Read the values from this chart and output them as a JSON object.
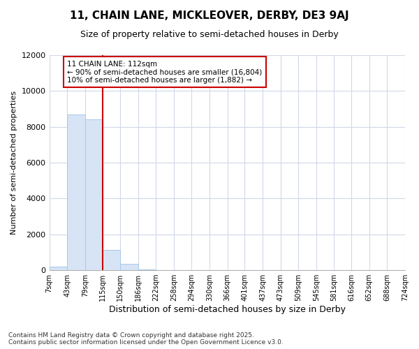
{
  "title1": "11, CHAIN LANE, MICKLEOVER, DERBY, DE3 9AJ",
  "title2": "Size of property relative to semi-detached houses in Derby",
  "xlabel": "Distribution of semi-detached houses by size in Derby",
  "ylabel": "Number of semi-detached properties",
  "annotation_line1": "11 CHAIN LANE: 112sqm",
  "annotation_line2": "← 90% of semi-detached houses are smaller (16,804)",
  "annotation_line3": "10% of semi-detached houses are larger (1,882) →",
  "footer1": "Contains HM Land Registry data © Crown copyright and database right 2025.",
  "footer2": "Contains public sector information licensed under the Open Government Licence v3.0.",
  "bin_edges": [
    7,
    43,
    79,
    115,
    150,
    186,
    222,
    258,
    294,
    330,
    366,
    401,
    437,
    473,
    509,
    545,
    581,
    616,
    652,
    688,
    724
  ],
  "bin_labels": [
    "7sqm",
    "43sqm",
    "79sqm",
    "115sqm",
    "150sqm",
    "186sqm",
    "222sqm",
    "258sqm",
    "294sqm",
    "330sqm",
    "366sqm",
    "401sqm",
    "437sqm",
    "473sqm",
    "509sqm",
    "545sqm",
    "581sqm",
    "616sqm",
    "652sqm",
    "688sqm",
    "724sqm"
  ],
  "counts": [
    200,
    8700,
    8400,
    1150,
    350,
    50,
    0,
    0,
    0,
    0,
    0,
    0,
    0,
    0,
    0,
    0,
    0,
    0,
    0,
    0
  ],
  "bar_color": "#d6e4f5",
  "bar_edge_color": "#a8c8e8",
  "line_color": "#cc0000",
  "background_color": "#ffffff",
  "grid_color": "#d0d8e8",
  "annotation_box_edge": "#cc0000",
  "annotation_box_fill": "#ffffff",
  "ylim": [
    0,
    12000
  ],
  "red_line_x": 115
}
